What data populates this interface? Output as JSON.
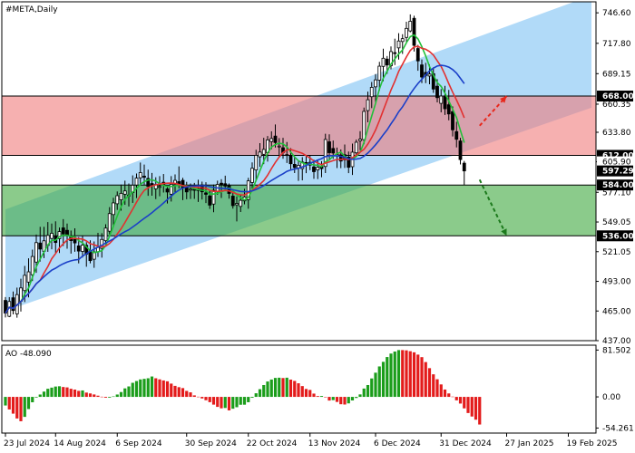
{
  "chart_data": {
    "type": "candlestick",
    "title": "#META,Daily",
    "main_panel": {
      "ylim": [
        437,
        757
      ],
      "y_ticks": [
        "746.60",
        "717.80",
        "689.15",
        "660.35",
        "633.80",
        "605.90",
        "577.10",
        "549.05",
        "521.05",
        "493.00",
        "465.00",
        "437.00"
      ],
      "candles": [
        [
          475.0,
          478.2,
          458.9,
          463.0
        ],
        [
          460.0,
          478.1,
          459.2,
          474.0
        ],
        [
          477.5,
          483.4,
          461.8,
          465.5
        ],
        [
          462.3,
          487.1,
          458.7,
          480.5
        ],
        [
          474.3,
          495.5,
          464.5,
          486.8
        ],
        [
          484.3,
          507.6,
          473.4,
          498.7
        ],
        [
          492.3,
          514.8,
          477.9,
          502.0
        ],
        [
          499.2,
          523.0,
          493.3,
          516.5
        ],
        [
          511.2,
          537.2,
          501.1,
          529.6
        ],
        [
          529.2,
          544.5,
          511.7,
          523.5
        ],
        [
          521.4,
          544.5,
          515.0,
          531.3
        ],
        [
          526.9,
          549.0,
          520.9,
          536.4
        ],
        [
          533.5,
          547.6,
          523.3,
          538.4
        ],
        [
          535.5,
          549.7,
          519.9,
          529.7
        ],
        [
          533.3,
          543.8,
          519.8,
          540.0
        ],
        [
          543.5,
          551.8,
          526.4,
          537.8
        ],
        [
          541.2,
          547.6,
          523.8,
          537.0
        ],
        [
          535.5,
          541.0,
          519.2,
          531.5
        ],
        [
          532.7,
          543.1,
          521.0,
          529.3
        ],
        [
          526.5,
          534.8,
          510.0,
          521.6
        ],
        [
          521.3,
          536.4,
          515.5,
          527.2
        ],
        [
          527.1,
          530.0,
          506.8,
          518.7
        ],
        [
          521.8,
          531.8,
          510.1,
          512.6
        ],
        [
          513.9,
          530.7,
          505.8,
          520.8
        ],
        [
          521.0,
          538.8,
          516.0,
          525.0
        ],
        [
          524.2,
          538.5,
          515.4,
          532.6
        ],
        [
          531.4,
          547.0,
          527.8,
          543.3
        ],
        [
          540.4,
          563.1,
          537.3,
          557.0
        ],
        [
          556.1,
          572.0,
          545.1,
          567.1
        ],
        [
          566.3,
          577.9,
          560.5,
          573.9
        ],
        [
          570.0,
          584.4,
          559.8,
          576.1
        ],
        [
          575.3,
          588.1,
          565.3,
          578.4
        ],
        [
          574.2,
          585.4,
          563.7,
          574.5
        ],
        [
          576.8,
          593.1,
          567.1,
          583.8
        ],
        [
          584.0,
          594.9,
          571.7,
          590.5
        ],
        [
          590.8,
          605.2,
          584.5,
          595.7
        ],
        [
          592.3,
          603.3,
          584.3,
          591.3
        ],
        [
          590.2,
          598.5,
          573.8,
          582.7
        ],
        [
          585.4,
          595.4,
          573.9,
          584.3
        ],
        [
          580.4,
          591.3,
          570.7,
          584.5
        ],
        [
          582.5,
          592.4,
          573.4,
          582.6
        ],
        [
          586.6,
          594.4,
          576.9,
          584.0
        ],
        [
          580.3,
          583.1,
          566.5,
          577.4
        ],
        [
          575.3,
          592.4,
          568.4,
          584.7
        ],
        [
          584.9,
          594.0,
          576.6,
          588.4
        ],
        [
          587.2,
          601.6,
          580.9,
          584.2
        ],
        [
          588.4,
          590.8,
          569.7,
          581.4
        ],
        [
          583.8,
          587.0,
          570.6,
          577.5
        ],
        [
          579.2,
          585.4,
          570.8,
          580.1
        ],
        [
          579.9,
          586.0,
          570.9,
          579.5
        ],
        [
          578.8,
          589.0,
          568.0,
          580.5
        ],
        [
          584.0,
          587.2,
          570.3,
          577.6
        ],
        [
          576.5,
          586.6,
          566.9,
          575.2
        ],
        [
          573.6,
          578.5,
          561.4,
          565.0
        ],
        [
          566.0,
          584.4,
          558.3,
          579.0
        ],
        [
          577.8,
          588.1,
          574.8,
          584.5
        ],
        [
          585.7,
          589.5,
          571.8,
          584.1
        ],
        [
          585.2,
          592.8,
          578.3,
          583.0
        ],
        [
          583.3,
          585.4,
          571.1,
          576.0
        ],
        [
          573.5,
          580.1,
          561.7,
          564.5
        ],
        [
          565.3,
          573.3,
          549.6,
          566.6
        ],
        [
          563.8,
          574.4,
          558.5,
          569.5
        ],
        [
          569.0,
          580.4,
          565.8,
          572.7
        ],
        [
          570.2,
          590.8,
          561.6,
          587.9
        ],
        [
          586.4,
          605.3,
          580.5,
          599.8
        ],
        [
          598.2,
          617.3,
          588.2,
          612.0
        ],
        [
          610.6,
          623.5,
          601.2,
          615.1
        ],
        [
          613.0,
          628.6,
          603.7,
          617.6
        ],
        [
          614.6,
          630.3,
          606.1,
          626.6
        ],
        [
          625.0,
          634.7,
          617.8,
          627.9
        ],
        [
          630.2,
          641.2,
          619.4,
          624.1
        ],
        [
          620.8,
          628.3,
          611.1,
          620.8
        ],
        [
          619.2,
          628.5,
          608.8,
          614.6
        ],
        [
          612.7,
          624.6,
          604.8,
          612.2
        ],
        [
          611.7,
          618.8,
          598.8,
          604.1
        ],
        [
          603.5,
          610.2,
          595.3,
          600.5
        ],
        [
          600.1,
          607.0,
          587.9,
          602.6
        ],
        [
          599.5,
          610.3,
          588.4,
          605.7
        ],
        [
          605.2,
          612.4,
          595.2,
          604.5
        ],
        [
          602.8,
          612.0,
          598.0,
          605.4
        ],
        [
          601.1,
          607.9,
          589.8,
          596.6
        ],
        [
          598.2,
          607.0,
          589.6,
          600.8
        ],
        [
          601.7,
          606.5,
          591.3,
          599.5
        ],
        [
          601.5,
          632.4,
          595.3,
          627.0
        ],
        [
          624.8,
          631.9,
          607.4,
          614.5
        ],
        [
          618.5,
          626.0,
          608.7,
          614.2
        ],
        [
          611.4,
          619.3,
          600.0,
          612.8
        ],
        [
          612.4,
          617.6,
          599.9,
          606.6
        ],
        [
          612.6,
          622.2,
          600.1,
          607.7
        ],
        [
          610.4,
          615.6,
          595.2,
          600.7
        ],
        [
          601.3,
          623.1,
          593.5,
          615.0
        ],
        [
          614.4,
          626.9,
          612.3,
          624.4
        ],
        [
          625.8,
          634.9,
          616.9,
          627.3
        ],
        [
          626.8,
          657.1,
          622.5,
          653.5
        ],
        [
          654.3,
          672.2,
          643.2,
          664.5
        ],
        [
          667.4,
          681.3,
          656.6,
          676.2
        ],
        [
          676.7,
          688.8,
          661.6,
          683.3
        ],
        [
          683.0,
          700.3,
          673.1,
          696.2
        ],
        [
          696.0,
          712.7,
          682.0,
          703.7
        ],
        [
          702.9,
          705.8,
          689.0,
          697.3
        ],
        [
          696.7,
          714.9,
          693.3,
          710.0
        ],
        [
          709.0,
          722.2,
          697.3,
          708.1
        ],
        [
          713.5,
          727.4,
          702.5,
          720.0
        ],
        [
          719.5,
          726.4,
          707.8,
          722.2
        ],
        [
          723.4,
          738.2,
          717.4,
          731.9
        ],
        [
          729.5,
          745.1,
          728.2,
          738.6
        ],
        [
          741.4,
          743.8,
          710.1,
          715.9
        ],
        [
          712.9,
          716.3,
          691.9,
          701.2
        ],
        [
          697.4,
          702.6,
          680.2,
          686.0
        ],
        [
          690.3,
          699.4,
          680.2,
          687.5
        ],
        [
          686.9,
          697.7,
          679.1,
          688.8
        ],
        [
          689.1,
          695.1,
          671.0,
          674.6
        ],
        [
          677.3,
          683.9,
          662.0,
          666.5
        ],
        [
          661.1,
          674.6,
          652.6,
          668.0
        ],
        [
          667.2,
          677.6,
          650.2,
          656.0
        ],
        [
          659.8,
          673.8,
          645.1,
          651.1
        ],
        [
          653.3,
          658.2,
          629.8,
          636.1
        ],
        [
          634.4,
          643.7,
          619.5,
          627.2
        ],
        [
          625.6,
          628.5,
          603.4,
          608.0
        ],
        [
          604.6,
          606.7,
          584.0,
          597.3
        ]
      ],
      "start_index": 0,
      "channel": {
        "color": "#87c6f5",
        "start": {
          "index": 0,
          "lower": 465,
          "upper": 561
        },
        "end": {
          "index": 152,
          "lower": 657,
          "upper": 763
        }
      },
      "zones": [
        {
          "from": 612.0,
          "to": 668.0,
          "color": "#f07b7b"
        },
        {
          "from": 536.0,
          "to": 584.0,
          "color": "#3ea83e"
        }
      ],
      "level_lines": [
        668.0,
        612.0,
        584.0,
        536.0
      ],
      "price_labels": [
        {
          "value": 668.0,
          "text": "668.00",
          "style": "dark"
        },
        {
          "value": 612.0,
          "text": "612.00",
          "style": "dark"
        },
        {
          "value": 605.9,
          "text": "605.90",
          "style": "light"
        },
        {
          "value": 597.29,
          "text": "597.29",
          "style": "dark"
        },
        {
          "value": 584.0,
          "text": "584.00",
          "style": "dark"
        },
        {
          "value": 536.0,
          "text": "536.00",
          "style": "dark"
        }
      ],
      "forecast_arrows": [
        {
          "color": "#e8281c",
          "from_index": 123,
          "from_value": 640,
          "to_index": 130,
          "to_value": 668
        },
        {
          "color": "#1c7a1c",
          "from_index": 123,
          "from_value": 589,
          "to_index": 130,
          "to_value": 536
        }
      ],
      "ma_lines": [
        {
          "color": "#22c03a",
          "period": 5
        },
        {
          "color": "#e23030",
          "period": 10
        },
        {
          "color": "#1a3fc8",
          "period": 20
        }
      ]
    },
    "ao_panel": {
      "label": "AO -48.090",
      "y_ticks": [
        "81.502",
        "0.00",
        "-54.261"
      ],
      "ylim": [
        -63,
        90
      ],
      "values": [
        -15.0,
        -21.9,
        -29.2,
        -37.6,
        -42.4,
        -34.8,
        -21.2,
        -9.4,
        -1.1,
        4.1,
        9.2,
        14.1,
        16.1,
        18.0,
        18.5,
        17.2,
        16.5,
        14.1,
        12.7,
        10.5,
        11.2,
        7.5,
        6.0,
        4.2,
        2.1,
        0.3,
        -1.4,
        -1.3,
        0.8,
        4.1,
        8.4,
        14.8,
        18.2,
        24.5,
        27.6,
        30.4,
        31.4,
        32.4,
        35.5,
        32.4,
        30.5,
        28.6,
        27.1,
        23.1,
        19.2,
        16.9,
        15.3,
        10.4,
        7.9,
        2.6,
        0.3,
        -2.7,
        -5.8,
        -9.2,
        -13.5,
        -17.4,
        -19.9,
        -19.3,
        -23.5,
        -20.6,
        -18.0,
        -13.7,
        -13.6,
        -9.3,
        -1.5,
        6.3,
        13.4,
        20.6,
        26.8,
        30.2,
        33.0,
        33.4,
        32.8,
        33.4,
        30.1,
        27.8,
        23.7,
        18.8,
        13.8,
        12.1,
        5.7,
        1.4,
        1.5,
        -0.8,
        -6.4,
        -5.6,
        -8.8,
        -12.8,
        -13.3,
        -11.3,
        -6.2,
        -1.9,
        4.3,
        14.5,
        20.6,
        32.1,
        42.1,
        53.0,
        61.0,
        69.4,
        75.4,
        78.9,
        81.5,
        81.5,
        81.0,
        79.5,
        77.6,
        73.6,
        69.2,
        60.6,
        50.0,
        39.3,
        30.7,
        21.7,
        12.8,
        6.0,
        0.5,
        -6.0,
        -11.6,
        -20.0,
        -28.1,
        -34.2,
        -39.7,
        -48.1
      ]
    },
    "x_labels": [
      {
        "index": 0,
        "text": "23 Jul 2024"
      },
      {
        "index": 13,
        "text": "14 Aug 2024"
      },
      {
        "index": 29,
        "text": "6 Sep 2024"
      },
      {
        "index": 47,
        "text": "30 Sep 2024"
      },
      {
        "index": 63,
        "text": "22 Oct 2024"
      },
      {
        "index": 79,
        "text": "13 Nov 2024"
      },
      {
        "index": 96,
        "text": "6 Dec 2024"
      },
      {
        "index": 113,
        "text": "31 Dec 2024"
      },
      {
        "index": 130,
        "text": "27 Jan 2025"
      },
      {
        "index": 146,
        "text": "19 Feb 2025"
      }
    ]
  }
}
